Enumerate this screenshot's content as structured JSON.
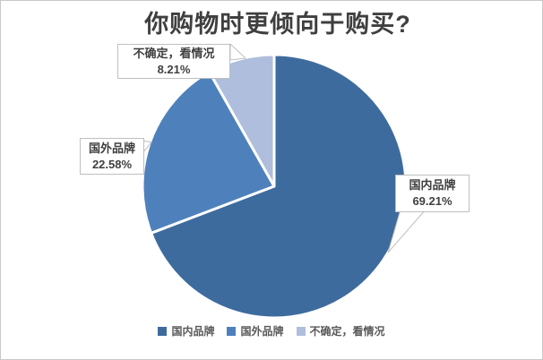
{
  "window": {
    "background": "#ffffff",
    "border_color": "#c8c8c8"
  },
  "chart_data": {
    "type": "pie",
    "title": "你购物时更倾向于购买?",
    "categories": [
      "国内品牌",
      "国外品牌",
      "不确定，看情况"
    ],
    "values": [
      69.21,
      22.58,
      8.21
    ],
    "value_labels": [
      "69.21%",
      "22.58%",
      "8.21%"
    ],
    "colors": [
      "#3E6B9E",
      "#4E81BC",
      "#AEBEDC"
    ],
    "slice_border_color": "#ffffff",
    "label_text_color": "#3f3f3f",
    "legend_text_color": "#595959",
    "legend_position": "bottom",
    "start_angle_deg": 0,
    "direction": "clockwise",
    "data_labels_style": "callout-boxes"
  }
}
